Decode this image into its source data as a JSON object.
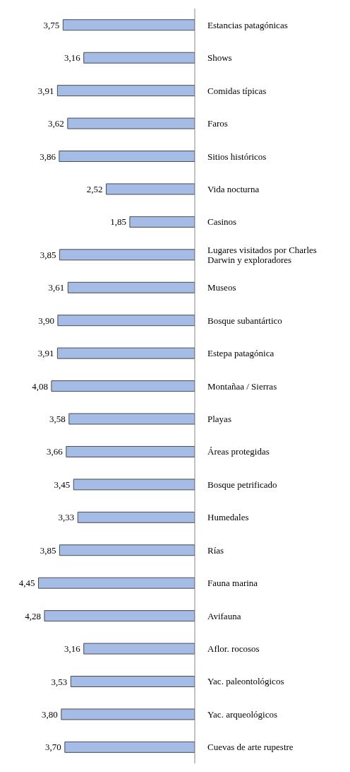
{
  "chart_data": {
    "type": "bar",
    "orientation": "horizontal",
    "categories": [
      "Estancias patagónicas",
      "Shows",
      "Comidas típicas",
      "Faros",
      "Sitios históricos",
      "Vida nocturna",
      "Casinos",
      "Lugares visitados por Charles Darwin y exploradores",
      "Museos",
      "Bosque subantártico",
      "Estepa patagónica",
      "Montañaa / Sierras",
      "Playas",
      "Áreas protegidas",
      "Bosque petrificado",
      "Humedales",
      "Rías",
      "Fauna marina",
      "Avifauna",
      "Aflor. rocosos",
      "Yac. paleontológicos",
      "Yac. arqueológicos",
      "Cuevas de arte rupestre"
    ],
    "values": [
      3.75,
      3.16,
      3.91,
      3.62,
      3.86,
      2.52,
      1.85,
      3.85,
      3.61,
      3.9,
      3.91,
      4.08,
      3.58,
      3.66,
      3.45,
      3.33,
      3.85,
      4.45,
      4.28,
      3.16,
      3.53,
      3.8,
      3.7
    ],
    "value_labels": [
      "3,75",
      "3,16",
      "3,91",
      "3,62",
      "3,86",
      "2,52",
      "1,85",
      "3,85",
      "3,61",
      "3,90",
      "3,91",
      "4,08",
      "3,58",
      "3,66",
      "3,45",
      "3,33",
      "3,85",
      "4,45",
      "4,28",
      "3,16",
      "3,53",
      "3,80",
      "3,70"
    ],
    "color": "#a4bce6",
    "tick_labels": "y"
  }
}
